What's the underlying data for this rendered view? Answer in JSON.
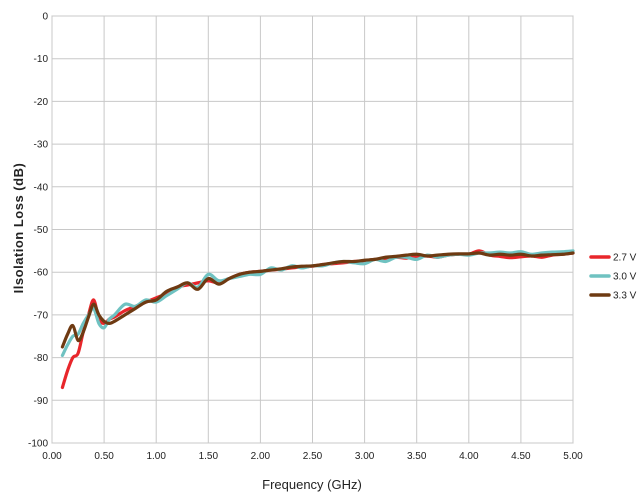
{
  "chart_data": {
    "type": "line",
    "title": "",
    "xlabel": "Frequency (GHz)",
    "ylabel": "Ilsolation Loss (dB)",
    "xlim": [
      0,
      5
    ],
    "ylim": [
      -100,
      0
    ],
    "xticks": [
      0,
      0.5,
      1,
      1.5,
      2,
      2.5,
      3,
      3.5,
      4,
      4.5,
      5
    ],
    "xtick_labels": [
      "0.00",
      "0.50",
      "1.00",
      "1.50",
      "2.00",
      "2.50",
      "3.00",
      "3.50",
      "4.00",
      "4.50",
      "5.00"
    ],
    "yticks": [
      0,
      -10,
      -20,
      -30,
      -40,
      -50,
      -60,
      -70,
      -80,
      -90,
      -100
    ],
    "ytick_labels": [
      "0",
      "-10",
      "-20",
      "-30",
      "-40",
      "-50",
      "-60",
      "-70",
      "-80",
      "-90",
      "-100"
    ],
    "grid": true,
    "legend_position": "right",
    "series": [
      {
        "name": "2.7 V",
        "color": "#e8262b",
        "x": [
          0.1,
          0.15,
          0.2,
          0.25,
          0.3,
          0.35,
          0.4,
          0.45,
          0.5,
          0.55,
          0.6,
          0.7,
          0.8,
          0.9,
          1.0,
          1.1,
          1.2,
          1.3,
          1.4,
          1.5,
          1.6,
          1.7,
          1.8,
          1.9,
          2.0,
          2.1,
          2.2,
          2.3,
          2.4,
          2.5,
          2.6,
          2.7,
          2.8,
          2.9,
          3.0,
          3.1,
          3.2,
          3.3,
          3.4,
          3.5,
          3.6,
          3.7,
          3.8,
          3.9,
          4.0,
          4.1,
          4.2,
          4.3,
          4.4,
          4.5,
          4.6,
          4.7,
          4.8,
          4.9,
          5.0
        ],
        "y": [
          -87,
          -83,
          -80,
          -79,
          -74,
          -70,
          -66.5,
          -71,
          -72,
          -71,
          -70.5,
          -69,
          -68,
          -67,
          -66,
          -65,
          -63.5,
          -63,
          -62.5,
          -62,
          -62.5,
          -61.5,
          -60.5,
          -60,
          -59.8,
          -59.5,
          -59.3,
          -59,
          -58.8,
          -58.6,
          -58.2,
          -58,
          -57.8,
          -57.5,
          -57.3,
          -57,
          -56.8,
          -56.5,
          -56.7,
          -56.4,
          -56.2,
          -56.5,
          -56,
          -55.8,
          -55.8,
          -55,
          -56,
          -56.3,
          -56.6,
          -56.4,
          -56.2,
          -56.5,
          -56,
          -55.8,
          -55.5
        ]
      },
      {
        "name": "3.0 V",
        "color": "#6fc2c1",
        "x": [
          0.1,
          0.15,
          0.2,
          0.25,
          0.3,
          0.35,
          0.4,
          0.45,
          0.5,
          0.55,
          0.6,
          0.7,
          0.8,
          0.9,
          1.0,
          1.1,
          1.2,
          1.3,
          1.4,
          1.5,
          1.6,
          1.7,
          1.8,
          1.9,
          2.0,
          2.1,
          2.2,
          2.3,
          2.4,
          2.5,
          2.6,
          2.7,
          2.8,
          2.9,
          3.0,
          3.1,
          3.2,
          3.3,
          3.4,
          3.5,
          3.6,
          3.7,
          3.8,
          3.9,
          4.0,
          4.1,
          4.2,
          4.3,
          4.4,
          4.5,
          4.6,
          4.7,
          4.8,
          4.9,
          5.0
        ],
        "y": [
          -79.5,
          -77,
          -75,
          -74.5,
          -72,
          -70,
          -68.5,
          -72,
          -73,
          -71,
          -70,
          -67.5,
          -68,
          -66.5,
          -67,
          -65.5,
          -64,
          -62.5,
          -63.5,
          -60.5,
          -62,
          -61.5,
          -61,
          -60.5,
          -60.5,
          -59,
          -59.5,
          -58.5,
          -59,
          -58.5,
          -58.5,
          -57.8,
          -57.5,
          -57.8,
          -58,
          -57,
          -57.5,
          -56.5,
          -56.5,
          -57,
          -56,
          -56.5,
          -56,
          -55.8,
          -56,
          -55.5,
          -55.5,
          -55.3,
          -55.5,
          -55.2,
          -55.8,
          -55.5,
          -55.3,
          -55.2,
          -55
        ]
      },
      {
        "name": "3.3 V",
        "color": "#6e3a12",
        "x": [
          0.1,
          0.15,
          0.2,
          0.25,
          0.3,
          0.35,
          0.4,
          0.45,
          0.5,
          0.55,
          0.6,
          0.7,
          0.8,
          0.9,
          1.0,
          1.1,
          1.2,
          1.3,
          1.4,
          1.5,
          1.6,
          1.7,
          1.8,
          1.9,
          2.0,
          2.1,
          2.2,
          2.3,
          2.4,
          2.5,
          2.6,
          2.7,
          2.8,
          2.9,
          3.0,
          3.1,
          3.2,
          3.3,
          3.4,
          3.5,
          3.6,
          3.7,
          3.8,
          3.9,
          4.0,
          4.1,
          4.2,
          4.3,
          4.4,
          4.5,
          4.6,
          4.7,
          4.8,
          4.9,
          5.0
        ],
        "y": [
          -77.5,
          -74.5,
          -72.5,
          -76,
          -74,
          -70.5,
          -67.5,
          -70,
          -71.5,
          -72,
          -71.5,
          -70,
          -68.5,
          -67,
          -66.5,
          -64.5,
          -63.5,
          -62.5,
          -64,
          -61.5,
          -62.8,
          -61.5,
          -60.5,
          -60,
          -59.8,
          -59.5,
          -59.2,
          -58.8,
          -58.6,
          -58.5,
          -58.2,
          -57.8,
          -57.5,
          -57.5,
          -57.2,
          -57,
          -56.5,
          -56.3,
          -56,
          -55.8,
          -56.2,
          -56,
          -55.8,
          -55.7,
          -55.7,
          -55.5,
          -56,
          -55.8,
          -56,
          -55.8,
          -56.2,
          -56,
          -55.9,
          -55.8,
          -55.5
        ]
      }
    ]
  }
}
